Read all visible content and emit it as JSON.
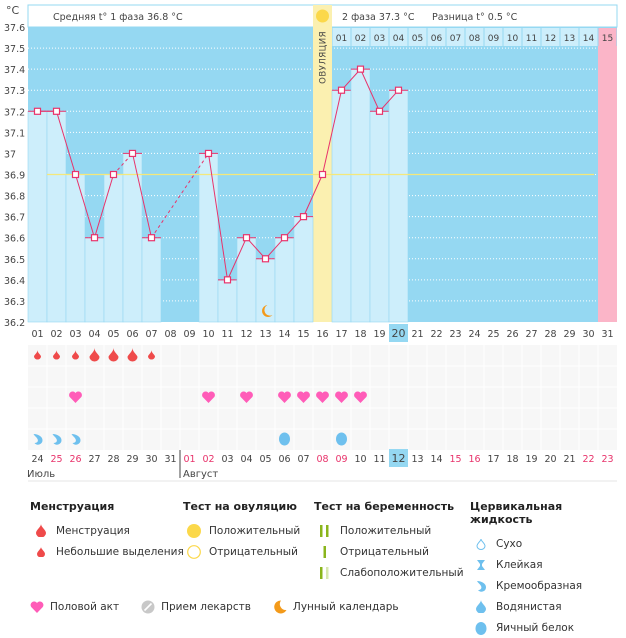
{
  "header": {
    "unit_label": "°C",
    "phase1_label": "Средняя t° 1 фаза",
    "phase1_value": "36.8 °C",
    "phase2_label": "2 фаза",
    "phase2_value": "37.3 °C",
    "diff_label": "Разница t°",
    "diff_value": "0.5 °C",
    "ovulation_label": "ОВУЛЯЦИЯ"
  },
  "chart_data": {
    "type": "line",
    "title": "",
    "ylabel": "°C",
    "ylim": [
      36.2,
      37.6
    ],
    "yticks": [
      "37.6",
      "37.5",
      "37.4",
      "37.3",
      "37.2",
      "37.1",
      "37",
      "36.9",
      "36.8",
      "36.7",
      "36.6",
      "36.5",
      "36.4",
      "36.3",
      "36.2"
    ],
    "coverline": 36.9,
    "cycle_days": [
      "01",
      "02",
      "03",
      "04",
      "05",
      "06",
      "07",
      "08",
      "09",
      "10",
      "11",
      "12",
      "13",
      "14",
      "15",
      "16",
      "17",
      "18",
      "19",
      "20",
      "21",
      "22",
      "23",
      "24",
      "25",
      "26",
      "27",
      "28",
      "29",
      "30",
      "31"
    ],
    "today_day": "20",
    "ovulation_day": "16",
    "luteal_days": [
      "01",
      "02",
      "03",
      "04",
      "05",
      "06",
      "07",
      "08",
      "09",
      "10",
      "11",
      "12",
      "13",
      "14",
      "15"
    ],
    "next_period_day": "15",
    "series": [
      {
        "name": "BBT",
        "values": [
          37.2,
          37.2,
          36.9,
          36.6,
          36.9,
          37.0,
          36.6,
          null,
          null,
          37.0,
          36.4,
          36.6,
          36.5,
          36.6,
          36.7,
          36.9,
          37.3,
          37.4,
          37.2,
          37.3,
          null,
          null,
          null,
          null,
          null,
          null,
          null,
          null,
          null,
          null,
          null
        ],
        "dashed_segments": [
          [
            5,
            6
          ],
          [
            7,
            10
          ]
        ]
      }
    ],
    "moon_day": "13"
  },
  "calendar": {
    "dates": [
      {
        "d": "24",
        "weekend": false
      },
      {
        "d": "25",
        "weekend": true
      },
      {
        "d": "26",
        "weekend": true
      },
      {
        "d": "27",
        "weekend": false
      },
      {
        "d": "28",
        "weekend": false
      },
      {
        "d": "29",
        "weekend": false
      },
      {
        "d": "30",
        "weekend": false
      },
      {
        "d": "31",
        "weekend": false
      },
      {
        "d": "01",
        "weekend": true
      },
      {
        "d": "02",
        "weekend": true
      },
      {
        "d": "03",
        "weekend": false
      },
      {
        "d": "04",
        "weekend": false
      },
      {
        "d": "05",
        "weekend": false
      },
      {
        "d": "06",
        "weekend": false
      },
      {
        "d": "07",
        "weekend": false
      },
      {
        "d": "08",
        "weekend": true
      },
      {
        "d": "09",
        "weekend": true
      },
      {
        "d": "10",
        "weekend": false
      },
      {
        "d": "11",
        "weekend": false
      },
      {
        "d": "12",
        "weekend": false
      },
      {
        "d": "13",
        "weekend": false
      },
      {
        "d": "14",
        "weekend": false
      },
      {
        "d": "15",
        "weekend": true
      },
      {
        "d": "16",
        "weekend": true
      },
      {
        "d": "17",
        "weekend": false
      },
      {
        "d": "18",
        "weekend": false
      },
      {
        "d": "19",
        "weekend": false
      },
      {
        "d": "20",
        "weekend": false
      },
      {
        "d": "21",
        "weekend": false
      },
      {
        "d": "22",
        "weekend": true
      },
      {
        "d": "23",
        "weekend": true
      }
    ],
    "today_date": "12",
    "months": [
      {
        "label": "Июль"
      },
      {
        "label": "Август"
      }
    ],
    "menstruation": [
      "small",
      "small",
      "small",
      "heavy",
      "heavy",
      "heavy",
      "small",
      null,
      null,
      null,
      null,
      null,
      null,
      null,
      null,
      null,
      null,
      null,
      null,
      null,
      null,
      null,
      null,
      null,
      null,
      null,
      null,
      null,
      null,
      null,
      null
    ],
    "intercourse": [
      false,
      false,
      true,
      false,
      false,
      false,
      false,
      false,
      false,
      true,
      false,
      true,
      false,
      true,
      true,
      true,
      true,
      true,
      false,
      false,
      false,
      false,
      false,
      false,
      false,
      false,
      false,
      false,
      false,
      false,
      false
    ],
    "cervical_fluid": [
      "creamy",
      "creamy",
      "creamy",
      null,
      null,
      null,
      null,
      null,
      null,
      null,
      null,
      null,
      null,
      "egg_white",
      null,
      null,
      "egg_white",
      null,
      null,
      null,
      null,
      null,
      null,
      null,
      null,
      null,
      null,
      null,
      null,
      null,
      null
    ]
  },
  "legend": {
    "menstruation": {
      "title": "Менструация",
      "items": [
        "Менструация",
        "Небольшие выделения"
      ]
    },
    "ovulation_test": {
      "title": "Тест на овуляцию",
      "items": [
        "Положительный",
        "Отрицательный"
      ]
    },
    "pregnancy_test": {
      "title": "Тест на беременность",
      "items": [
        "Положительный",
        "Отрицательный",
        "Слабоположительный"
      ]
    },
    "cervical_fluid": {
      "title": "Цервикальная жидкость",
      "items": [
        "Сухо",
        "Клейкая",
        "Кремообразная",
        "Водянистая",
        "Яичный белок"
      ]
    },
    "other": [
      "Половой акт",
      "Прием лекарств",
      "Лунный календарь"
    ]
  },
  "colors": {
    "sky": "#95d8f2",
    "bar": "#cdeefb",
    "line": "#e8336b",
    "ovulation": "#fbf0b0",
    "period": "#fbb5c8",
    "coverline": "#f5e87a",
    "weekend": "#e8336b",
    "drop": "#ef4a4a",
    "heart": "#ff5cb8",
    "fluid": "#6ec0ee",
    "moon": "#f39a1a",
    "test": "#8ab51c"
  }
}
